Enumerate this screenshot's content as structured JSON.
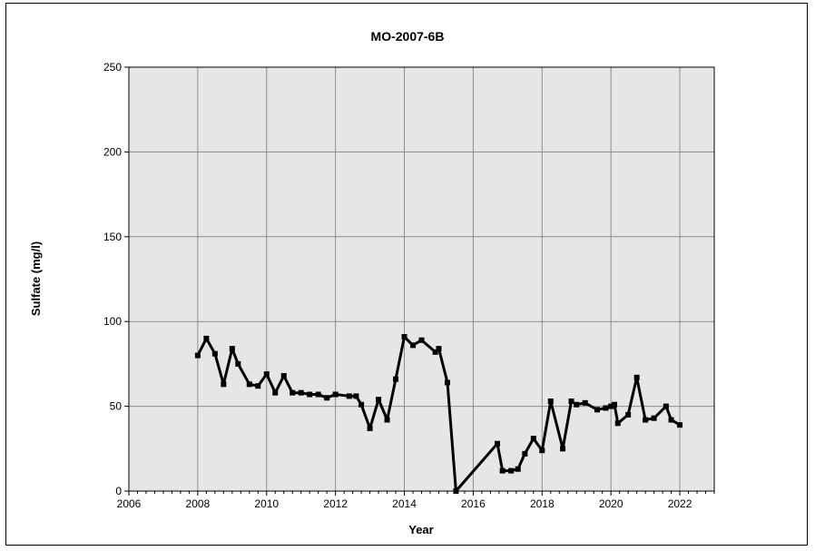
{
  "chart_data": {
    "type": "line",
    "title": "MO-2007-6B",
    "xlabel": "Year",
    "ylabel": "Sulfate (mg/l)",
    "xlim": [
      2006,
      2023
    ],
    "ylim": [
      0,
      250
    ],
    "x_ticks": [
      "2006",
      "2008",
      "2010",
      "2012",
      "2014",
      "2016",
      "2018",
      "2020",
      "2022"
    ],
    "y_ticks": [
      "0",
      "50",
      "100",
      "150",
      "200",
      "250"
    ],
    "grid": true,
    "legend": "none",
    "series": [
      {
        "color": "#000000",
        "marker": "square",
        "x": [
          2008.0,
          2008.25,
          2008.5,
          2008.75,
          2009.0,
          2009.17,
          2009.5,
          2009.75,
          2010.0,
          2010.25,
          2010.5,
          2010.75,
          2011.0,
          2011.25,
          2011.5,
          2011.75,
          2012.0,
          2012.4,
          2012.6,
          2012.75,
          2013.0,
          2013.25,
          2013.5,
          2013.75,
          2014.0,
          2014.25,
          2014.5,
          2014.9,
          2015.0,
          2015.25,
          2015.5,
          2016.7,
          2016.85,
          2017.1,
          2017.3,
          2017.5,
          2017.75,
          2018.0,
          2018.25,
          2018.6,
          2018.85,
          2019.0,
          2019.25,
          2019.6,
          2019.85,
          2020.0,
          2020.1,
          2020.2,
          2020.5,
          2020.75,
          2021.0,
          2021.25,
          2021.6,
          2021.75,
          2022.0
        ],
        "y": [
          80,
          90,
          81,
          63,
          84,
          75,
          63,
          62,
          69,
          58,
          68,
          58,
          58,
          57,
          57,
          55,
          57,
          56,
          56,
          51,
          37,
          54,
          42,
          66,
          91,
          86,
          89,
          82,
          84,
          64,
          0,
          28,
          12,
          12,
          13,
          22,
          31,
          24,
          53,
          25,
          53,
          51,
          52,
          48,
          49,
          50,
          51,
          40,
          45,
          67,
          42,
          43,
          50,
          42,
          39
        ]
      }
    ]
  }
}
